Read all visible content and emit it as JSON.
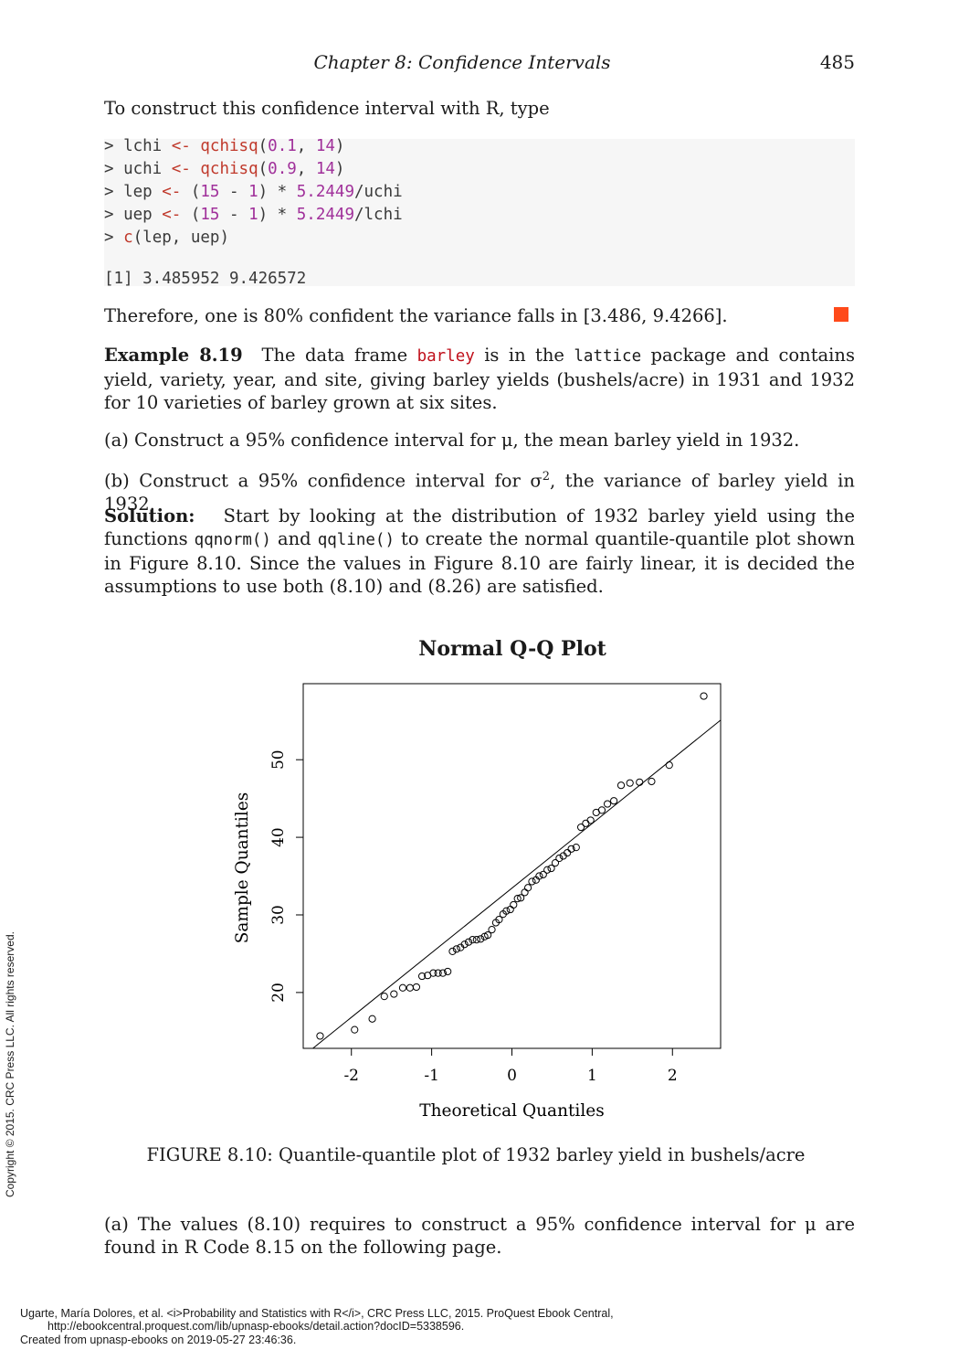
{
  "header": {
    "chapter": "Chapter  8:   Confidence Intervals",
    "page_number": "485"
  },
  "intro_text": "To construct this confidence interval with R, type",
  "code": {
    "lines": [
      {
        "prompt": "> ",
        "text": "lchi <- qchisq(0.1, 14)"
      },
      {
        "prompt": "> ",
        "text": "uchi <- qchisq(0.9, 14)"
      },
      {
        "prompt": "> ",
        "text": "lep <- (15 - 1) * 5.2449/uchi"
      },
      {
        "prompt": "> ",
        "text": "uep <- (15 - 1) * 5.2449/lchi"
      },
      {
        "prompt": "> ",
        "text": "c(lep, uep)"
      }
    ],
    "output": "[1] 3.485952 9.426572"
  },
  "conclusion_text": "Therefore, one is 80% confident the variance falls in [3.486, 9.4266].",
  "example": {
    "label": "Example 8.19",
    "t1": "The data frame",
    "dataset": "barley",
    "t2": "is in the",
    "package": "lattice",
    "t3": "package and contains yield, variety, year, and site, giving barley yields (bushels/acre) in 1931 and 1932 for 10 varieties of barley grown at six sites."
  },
  "parts": {
    "a": "(a)  Construct a 95% confidence interval for μ, the mean barley yield in 1932.",
    "b_prefix": "(b)  Construct a 95% confidence interval for σ",
    "b_sup": "2",
    "b_suffix": ", the variance of barley yield in 1932."
  },
  "solution": {
    "label": "Solution:",
    "t1": "Start by looking at the distribution of 1932 barley yield using the functions",
    "f1": "qqnorm()",
    "t2": "and",
    "f2": "qqline()",
    "t3": "to create the normal quantile-quantile plot shown in Figure 8.10. Since the values in Figure 8.10 are fairly linear, it is decided the assumptions to use both (8.10) and (8.26) are satisfied."
  },
  "chart_data": {
    "type": "scatter",
    "title": "Normal Q-Q Plot",
    "xlabel": "Theoretical Quantiles",
    "ylabel": "Sample Quantiles",
    "xlim": [
      -2.6,
      2.6
    ],
    "ylim": [
      12.8,
      59.8
    ],
    "xticks": [
      -2,
      -1,
      0,
      1,
      2
    ],
    "yticks": [
      20,
      30,
      40,
      50
    ],
    "grid": false,
    "points": {
      "x": [
        -2.39,
        -1.96,
        -1.74,
        -1.59,
        -1.47,
        -1.36,
        -1.27,
        -1.19,
        -1.12,
        -1.05,
        -0.98,
        -0.92,
        -0.86,
        -0.8,
        -0.74,
        -0.69,
        -0.64,
        -0.59,
        -0.54,
        -0.49,
        -0.44,
        -0.39,
        -0.34,
        -0.3,
        -0.25,
        -0.2,
        -0.16,
        -0.11,
        -0.07,
        -0.02,
        0.02,
        0.07,
        0.11,
        0.16,
        0.2,
        0.25,
        0.3,
        0.34,
        0.39,
        0.44,
        0.49,
        0.54,
        0.59,
        0.64,
        0.69,
        0.74,
        0.8,
        0.86,
        0.92,
        0.98,
        1.05,
        1.12,
        1.19,
        1.27,
        1.36,
        1.47,
        1.59,
        1.74,
        1.96,
        2.39
      ],
      "y": [
        14.4,
        15.2,
        16.6,
        19.5,
        19.8,
        20.6,
        20.6,
        20.7,
        22.1,
        22.2,
        22.5,
        22.5,
        22.5,
        22.7,
        25.3,
        25.6,
        25.8,
        26.2,
        26.5,
        26.8,
        26.8,
        26.9,
        27.2,
        27.4,
        28.1,
        29.0,
        29.4,
        30.1,
        30.5,
        30.7,
        31.3,
        32.1,
        32.2,
        32.9,
        33.5,
        34.3,
        34.5,
        35.0,
        35.2,
        35.8,
        36.0,
        36.7,
        37.3,
        37.6,
        38.0,
        38.5,
        38.7,
        41.3,
        41.8,
        42.2,
        43.2,
        43.5,
        44.3,
        44.7,
        46.7,
        47.0,
        47.1,
        47.2,
        49.3,
        58.2
      ]
    },
    "qqline": {
      "x1": -2.6,
      "y1": 11.8,
      "x2": 2.6,
      "y2": 55.1
    }
  },
  "figure_caption": "FIGURE 8.10: Quantile-quantile plot of 1932 barley yield in bushels/acre",
  "after_text": "(a) The values (8.10) requires to construct a 95% confidence interval for μ are found in R Code 8.15 on the following page.",
  "copyright": "Copyright © 2015. CRC Press LLC. All rights reserved.",
  "footer": {
    "line1": "Ugarte, María Dolores, et al. <i>Probability and Statistics with R</i>, CRC Press LLC, 2015. ProQuest Ebook Central,",
    "line2": "http://ebookcentral.proquest.com/lib/upnasp-ebooks/detail.action?docID=5338596.",
    "line3": "Created from upnasp-ebooks on 2019-05-27 23:46:36."
  },
  "colors": {
    "qed": "#ff4a1a",
    "code_bg": "#f6f6f6",
    "code_string": "#c0392b",
    "code_number": "#a0309a"
  }
}
